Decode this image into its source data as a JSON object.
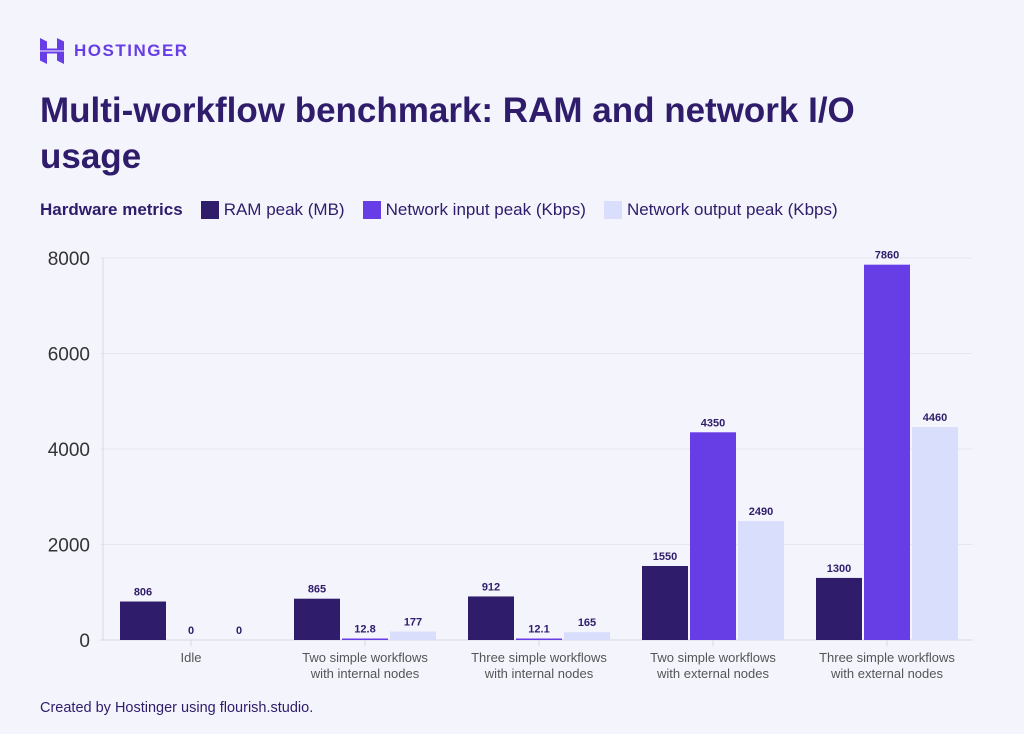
{
  "brand": "HOSTINGER",
  "title": "Multi-workflow benchmark: RAM and network I/O usage",
  "legend_title": "Hardware metrics",
  "footer": "Created by Hostinger using flourish.studio.",
  "chart_data": {
    "type": "bar",
    "title": "Multi-workflow benchmark: RAM and network I/O usage",
    "categories": [
      "Idle",
      "Two simple workflows with internal nodes",
      "Three simple workflows with internal nodes",
      "Two simple workflows with external nodes",
      "Three simple workflows with external nodes"
    ],
    "category_lines": [
      [
        "Idle"
      ],
      [
        "Two simple workflows",
        "with internal nodes"
      ],
      [
        "Three simple workflows",
        "with internal nodes"
      ],
      [
        "Two simple workflows",
        "with external nodes"
      ],
      [
        "Three simple workflows",
        "with external nodes"
      ]
    ],
    "series": [
      {
        "name": "RAM peak (MB)",
        "color": "#2f1c6a",
        "values": [
          806,
          865,
          912,
          1550,
          1300
        ]
      },
      {
        "name": "Network input peak (Kbps)",
        "color": "#673de6",
        "values": [
          0,
          12.8,
          12.1,
          4350,
          7860
        ]
      },
      {
        "name": "Network output peak (Kbps)",
        "color": "#d9defc",
        "values": [
          0,
          177,
          165,
          2490,
          4460
        ]
      }
    ],
    "ylim": [
      0,
      8000
    ],
    "yticks": [
      0,
      2000,
      4000,
      6000,
      8000
    ],
    "grid": true,
    "legend_position": "top-left"
  }
}
